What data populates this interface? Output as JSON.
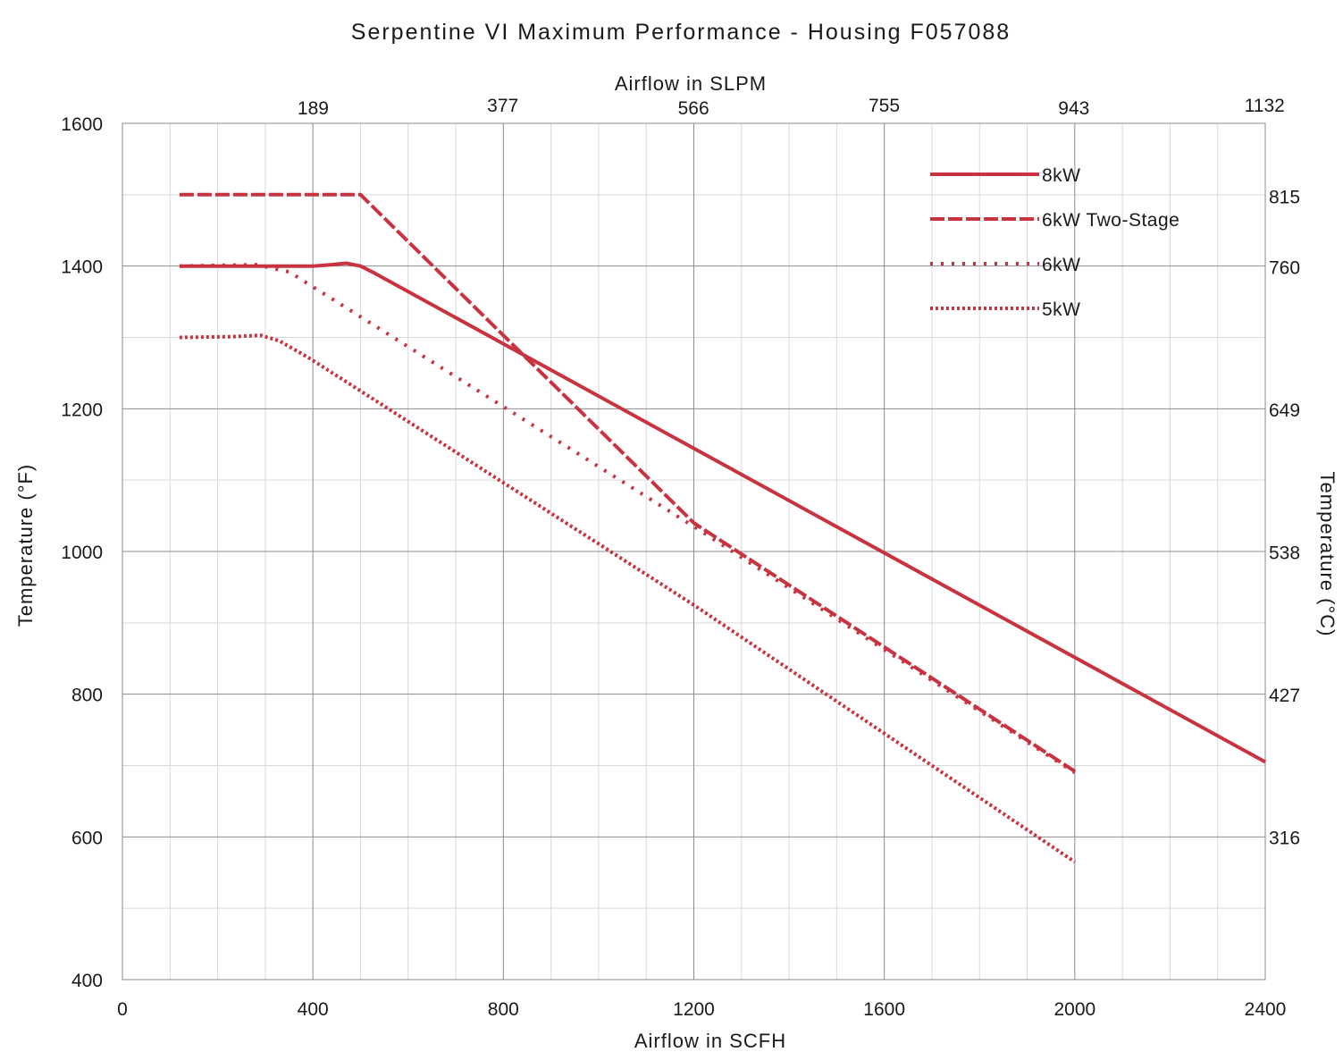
{
  "chart_data": {
    "type": "line",
    "title": "Serpentine VI Maximum Performance - Housing F057088",
    "xlabel": "Airflow in SCFH",
    "ylabel": "Temperature (°F)",
    "x2label": "Airflow in SLPM",
    "y2label": "Temperature (°C)",
    "xlim": [
      0,
      2400
    ],
    "ylim": [
      400,
      1600
    ],
    "x_ticks": [
      "0",
      "400",
      "800",
      "1200",
      "1600",
      "2000",
      "2400"
    ],
    "y_ticks": [
      "400",
      "600",
      "800",
      "1000",
      "1200",
      "1400",
      "1600"
    ],
    "x2_ticks": [
      "189",
      "377",
      "566",
      "755",
      "943",
      "1132"
    ],
    "y2_ticks": [
      "316",
      "427",
      "538",
      "649",
      "760",
      "815"
    ],
    "grid": true,
    "legend_position": "top-right",
    "color": "#c8333f",
    "series": [
      {
        "name": "8kW",
        "style": "solid",
        "points": [
          [
            120,
            1400
          ],
          [
            400,
            1400
          ],
          [
            440,
            1402
          ],
          [
            470,
            1404
          ],
          [
            500,
            1400
          ],
          [
            530,
            1390
          ],
          [
            2400,
            705
          ]
        ]
      },
      {
        "name": "6kW Two-Stage",
        "style": "dashed",
        "points": [
          [
            120,
            1500
          ],
          [
            500,
            1500
          ],
          [
            1200,
            1040
          ],
          [
            2000,
            692
          ]
        ]
      },
      {
        "name": "6kW",
        "style": "dotted",
        "points": [
          [
            120,
            1400
          ],
          [
            280,
            1402
          ],
          [
            350,
            1392
          ],
          [
            1200,
            1035
          ],
          [
            2000,
            690
          ]
        ]
      },
      {
        "name": "5kW",
        "style": "dense-dotted",
        "points": [
          [
            120,
            1300
          ],
          [
            230,
            1301
          ],
          [
            290,
            1303
          ],
          [
            330,
            1295
          ],
          [
            390,
            1272
          ],
          [
            500,
            1225
          ],
          [
            1200,
            925
          ],
          [
            1600,
            745
          ],
          [
            2000,
            565
          ]
        ]
      }
    ]
  }
}
